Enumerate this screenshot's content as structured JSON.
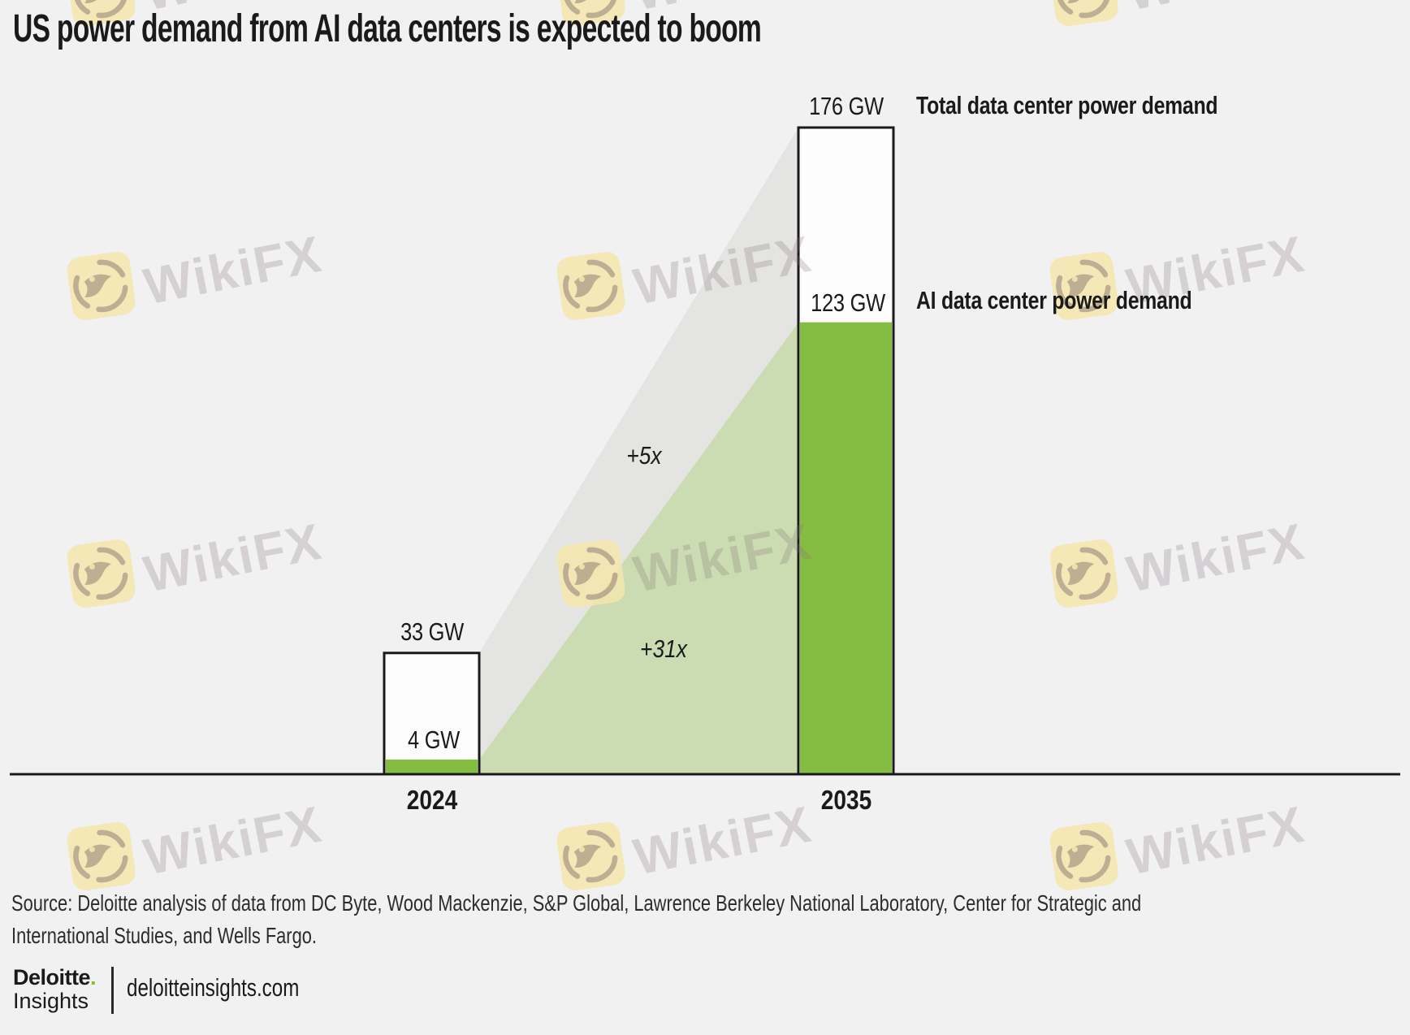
{
  "title": "US power demand from AI data centers is expected to boom",
  "chart_data": {
    "type": "bar",
    "categories": [
      "2024",
      "2035"
    ],
    "unit": "GW",
    "series": [
      {
        "name": "Total data center power demand",
        "values": [
          33,
          176
        ]
      },
      {
        "name": "AI data center power demand",
        "values": [
          4,
          123
        ]
      }
    ],
    "value_labels": {
      "total": [
        "33 GW",
        "176 GW"
      ],
      "ai": [
        "4 GW",
        "123 GW"
      ]
    },
    "annotations": [
      {
        "text": "+5x",
        "meaning": "total data center demand growth 2024 to 2035"
      },
      {
        "text": "+31x",
        "meaning": "AI data center demand growth 2024 to 2035"
      }
    ],
    "ylim": [
      0,
      176
    ],
    "grid": false,
    "legend_position": "right of 2035 bar"
  },
  "legend": {
    "total_label": "Total data center power demand",
    "ai_label": "AI data center power demand"
  },
  "source": {
    "line1": "Source: Deloitte analysis of data from DC Byte, Wood Mackenzie, S&P Global, Lawrence Berkeley National Laboratory, Center for Strategic and",
    "line2": "International Studies, and Wells Fargo."
  },
  "footer": {
    "brand_name": "Deloitte",
    "brand_dot": ".",
    "brand_sub": "Insights",
    "site": "deloitteinsights.com"
  },
  "watermark": {
    "text": "WikiFX"
  },
  "colors": {
    "background": "#f1f1f2",
    "ai_green": "#84bd42",
    "ai_band": "#cbdcb2",
    "total_band": "#e4e5e2",
    "bar_fill": "#fdfdfd",
    "bar_border": "#1a1a1a",
    "deloitte_green": "#86bc25",
    "text": "#1a1a1a",
    "source_text": "#2c2c2c",
    "watermark_text": "rgba(132,112,118,0.25)",
    "watermark_icon_bg": "#f3e6ab"
  }
}
